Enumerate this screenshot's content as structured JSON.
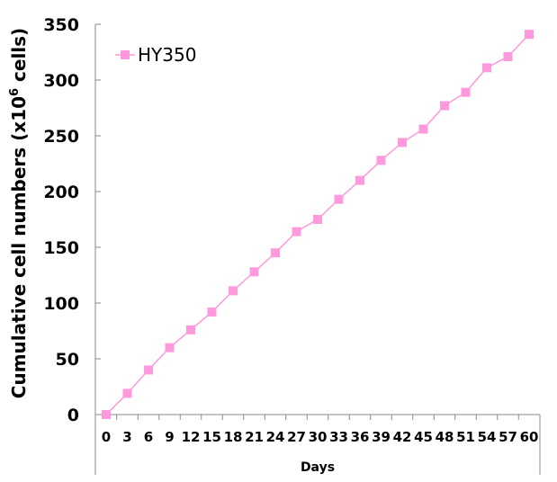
{
  "chart_data": {
    "type": "line",
    "xlabel": "Days",
    "ylabel": "Cumulative cell numbers (x10",
    "ylabel_sup": "6",
    "ylabel_tail": " cells)",
    "ylim": [
      0,
      350
    ],
    "yticks": [
      "0",
      "50",
      "100",
      "150",
      "200",
      "250",
      "300",
      "350"
    ],
    "x": [
      "0",
      "3",
      "6",
      "9",
      "12",
      "15",
      "18",
      "21",
      "24",
      "27",
      "30",
      "33",
      "36",
      "39",
      "42",
      "45",
      "48",
      "51",
      "54",
      "57",
      "60"
    ],
    "series": [
      {
        "name": "HY350",
        "color": "#ff99dd",
        "marker": "square",
        "values": [
          0,
          19,
          40,
          60,
          76,
          92,
          111,
          128,
          145,
          164,
          175,
          193,
          210,
          228,
          244,
          256,
          277,
          289,
          311,
          321,
          341
        ]
      }
    ],
    "legend_position": "top-left",
    "grid": false
  }
}
